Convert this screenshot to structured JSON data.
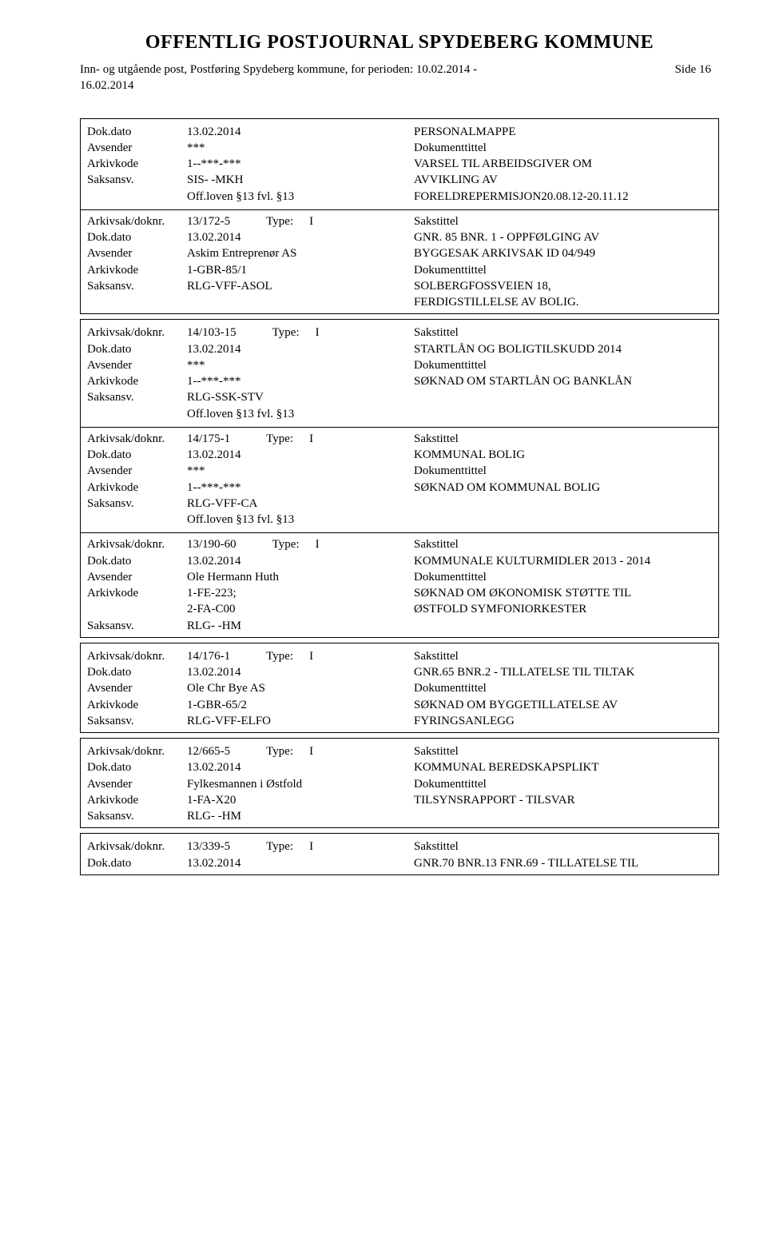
{
  "header": {
    "title": "OFFENTLIG POSTJOURNAL SPYDEBERG KOMMUNE",
    "sub_l1": "Inn- og utgående post, Postføring Spydeberg kommune, for perioden: 10.02.2014 -",
    "sub_l2": "16.02.2014",
    "side": "Side 16"
  },
  "labels": {
    "dokdato": "Dok.dato",
    "avsender": "Avsender",
    "arkivkode": "Arkivkode",
    "saksansv": "Saksansv.",
    "arkivsak": "Arkivsak/doknr.",
    "type": "Type:",
    "sakstittel": "Sakstittel",
    "dokumenttittel": "Dokumenttittel"
  },
  "blocks": [
    {
      "entries": [
        {
          "dokdato": "13.02.2014",
          "avsender": "***",
          "arkivkode": "1--***-***",
          "saksansv": "SIS- -MKH",
          "extra": "Off.loven §13 fvl. §13",
          "sakstittel": "PERSONALMAPPE",
          "doklines": [
            "VARSEL TIL ARBEIDSGIVER OM",
            "AVVIKLING AV",
            "FORELDREPERMISJON20.08.12-20.11.12"
          ]
        },
        {
          "arkivsak": "13/172-5",
          "type_i": "I",
          "dokdato": "13.02.2014",
          "avsender": "Askim Entreprenør AS",
          "arkivkode": "1-GBR-85/1",
          "saksansv": "RLG-VFF-ASOL",
          "saklines": [
            "GNR. 85 BNR. 1 - OPPFØLGING AV",
            "BYGGESAK ARKIVSAK ID 04/949"
          ],
          "doklines": [
            "SOLBERGFOSSVEIEN 18,",
            "FERDIGSTILLELSE AV BOLIG."
          ]
        }
      ]
    },
    {
      "entries": [
        {
          "arkivsak": "14/103-15",
          "type_i": "I",
          "dokdato": "13.02.2014",
          "avsender": "***",
          "arkivkode": "1--***-***",
          "saksansv": "RLG-SSK-STV",
          "extra": "Off.loven §13 fvl. §13",
          "saklines": [
            "STARTLÅN OG BOLIGTILSKUDD 2014"
          ],
          "doklines": [
            "SØKNAD OM STARTLÅN OG BANKLÅN"
          ]
        },
        {
          "arkivsak": "14/175-1",
          "type_i": "I",
          "dokdato": "13.02.2014",
          "avsender": "***",
          "arkivkode": "1--***-***",
          "saksansv": "RLG-VFF-CA",
          "extra": "Off.loven §13 fvl. §13",
          "saklines": [
            "KOMMUNAL BOLIG"
          ],
          "doklines": [
            "SØKNAD OM KOMMUNAL BOLIG"
          ]
        },
        {
          "arkivsak": "13/190-60",
          "type_i": "I",
          "dokdato": "13.02.2014",
          "avsender": "Ole Hermann Huth",
          "arkivkode_lines": [
            "1-FE-223;",
            "2-FA-C00"
          ],
          "saksansv": "RLG- -HM",
          "saklines": [
            "KOMMUNALE KULTURMIDLER 2013 - 2014"
          ],
          "doklines": [
            "SØKNAD OM ØKONOMISK STØTTE TIL",
            "ØSTFOLD SYMFONIORKESTER"
          ]
        }
      ]
    },
    {
      "entries": [
        {
          "arkivsak": "14/176-1",
          "type_i": "I",
          "dokdato": "13.02.2014",
          "avsender": "Ole Chr Bye AS",
          "arkivkode": "1-GBR-65/2",
          "saksansv": "RLG-VFF-ELFO",
          "saklines": [
            "GNR.65 BNR.2 - TILLATELSE TIL TILTAK"
          ],
          "doklines": [
            "SØKNAD OM BYGGETILLATELSE AV",
            "FYRINGSANLEGG"
          ]
        }
      ]
    },
    {
      "entries": [
        {
          "arkivsak": "12/665-5",
          "type_i": "I",
          "dokdato": "13.02.2014",
          "avsender": "Fylkesmannen i Østfold",
          "arkivkode": "1-FA-X20",
          "saksansv": "RLG- -HM",
          "saklines": [
            "KOMMUNAL BEREDSKAPSPLIKT"
          ],
          "doklines": [
            "TILSYNSRAPPORT - TILSVAR"
          ]
        }
      ]
    },
    {
      "entries": [
        {
          "arkivsak": "13/339-5",
          "type_i": "I",
          "dokdato": "13.02.2014",
          "saklines": [
            "GNR.70 BNR.13 FNR.69 - TILLATELSE TIL"
          ]
        }
      ]
    }
  ]
}
